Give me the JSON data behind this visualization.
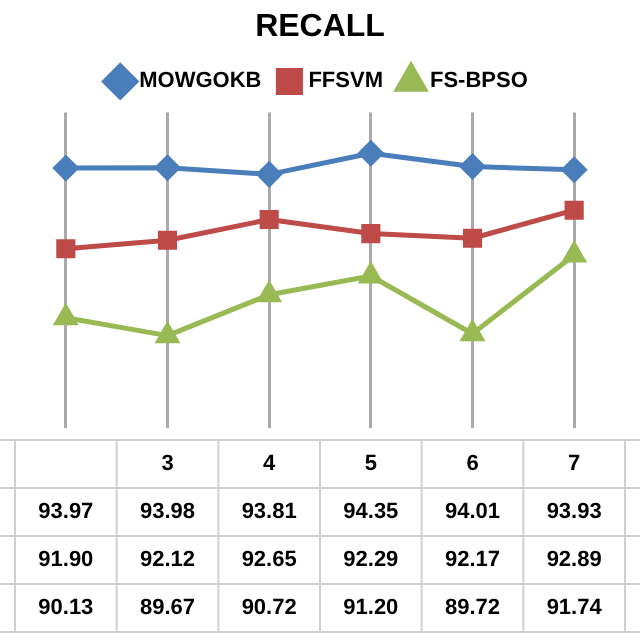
{
  "chart_data": {
    "type": "line",
    "title": "RECALL",
    "categories": [
      null,
      "3",
      "4",
      "5",
      "6",
      "7"
    ],
    "ylim": [
      87.3,
      95.4
    ],
    "grid": "x",
    "legend": "top",
    "data_labels": true,
    "series": [
      {
        "name": "MOWGOKB",
        "color": "#4a7ebb",
        "marker": "diamond",
        "values": [
          93.97,
          93.98,
          93.81,
          94.35,
          94.01,
          93.93
        ],
        "value_labels": [
          "93.97",
          "93.98",
          "93.81",
          "94.35",
          "94.01",
          "93.93"
        ]
      },
      {
        "name": "FFSVM",
        "color": "#be4b48",
        "marker": "square",
        "values": [
          91.9,
          92.12,
          92.65,
          92.29,
          92.17,
          92.89
        ],
        "value_labels": [
          "91.90",
          "92.12",
          "92.65",
          "92.29",
          "92.17",
          "92.89"
        ]
      },
      {
        "name": "FS-BPSO",
        "color": "#98b954",
        "marker": "triangle",
        "values": [
          90.13,
          89.67,
          90.72,
          91.2,
          89.72,
          91.74
        ],
        "value_labels": [
          "90.13",
          "89.67",
          "90.72",
          "91.20",
          "89.72",
          "91.74"
        ]
      }
    ]
  }
}
